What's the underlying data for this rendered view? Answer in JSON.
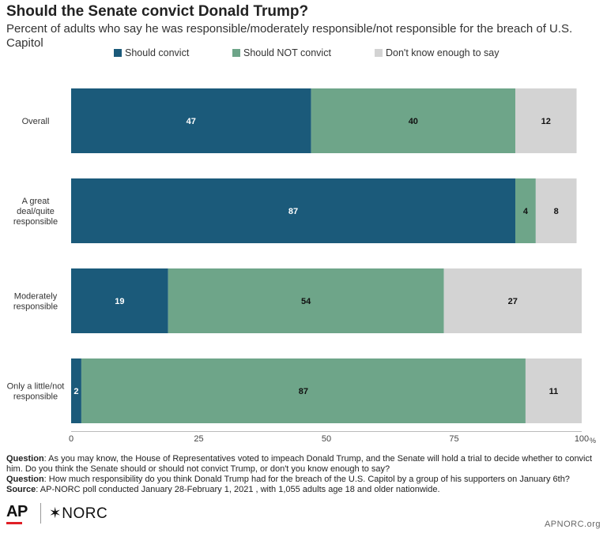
{
  "header": {
    "title": "Should the Senate convict Donald Trump?",
    "subtitle": "Percent of adults who say he was responsible/moderately responsible/not responsible for the breach of U.S. Capitol"
  },
  "colors": {
    "convict": "#1b5a7a",
    "not_convict": "#6ea589",
    "dont_know": "#d3d3d3"
  },
  "chart_data": {
    "type": "bar",
    "orientation": "horizontal",
    "stacked": true,
    "categories": [
      "Overall",
      "A great deal/quite responsible",
      "Moderately responsible",
      "Only a little/not responsible"
    ],
    "category_lines": [
      [
        "Overall"
      ],
      [
        "A great",
        "deal/quite",
        "responsible"
      ],
      [
        "Moderately",
        "responsible"
      ],
      [
        "Only a little/not",
        "responsible"
      ]
    ],
    "series": [
      {
        "name": "Should convict",
        "values": [
          47,
          87,
          19,
          2
        ],
        "color": "#1b5a7a",
        "label_color": "#ffffff"
      },
      {
        "name": "Should NOT convict",
        "values": [
          40,
          4,
          54,
          87
        ],
        "color": "#6ea589",
        "label_color": "#111111"
      },
      {
        "name": "Don't know enough to say",
        "values": [
          12,
          8,
          27,
          11
        ],
        "color": "#d3d3d3",
        "label_color": "#111111"
      }
    ],
    "xlim": [
      0,
      100
    ],
    "ticks": [
      0,
      25,
      50,
      75,
      100
    ],
    "tick_labels": [
      "0",
      "25",
      "50",
      "75",
      "100"
    ],
    "unit": "%",
    "grid": false,
    "legend_position": "top"
  },
  "footnotes": {
    "question1_label": "Question",
    "question1_text": ": As you may know, the House of Representatives voted to impeach Donald Trump, and the Senate will hold a trial to decide whether to convict him. Do you think the Senate should or should not convict Trump, or don't you know enough to say?",
    "question2_label": "Question",
    "question2_text": ": How much responsibility do you think Donald Trump had for the breach of the U.S. Capitol by a group of his supporters on January 6th?",
    "source_label": "Source",
    "source_text": ": AP-NORC poll conducted January 28-February 1, 2021 , with 1,055 adults age 18 and older nationwide."
  },
  "footer": {
    "logo_ap": "AP",
    "logo_norc": "✶NORC",
    "site": "APNORC.org"
  }
}
